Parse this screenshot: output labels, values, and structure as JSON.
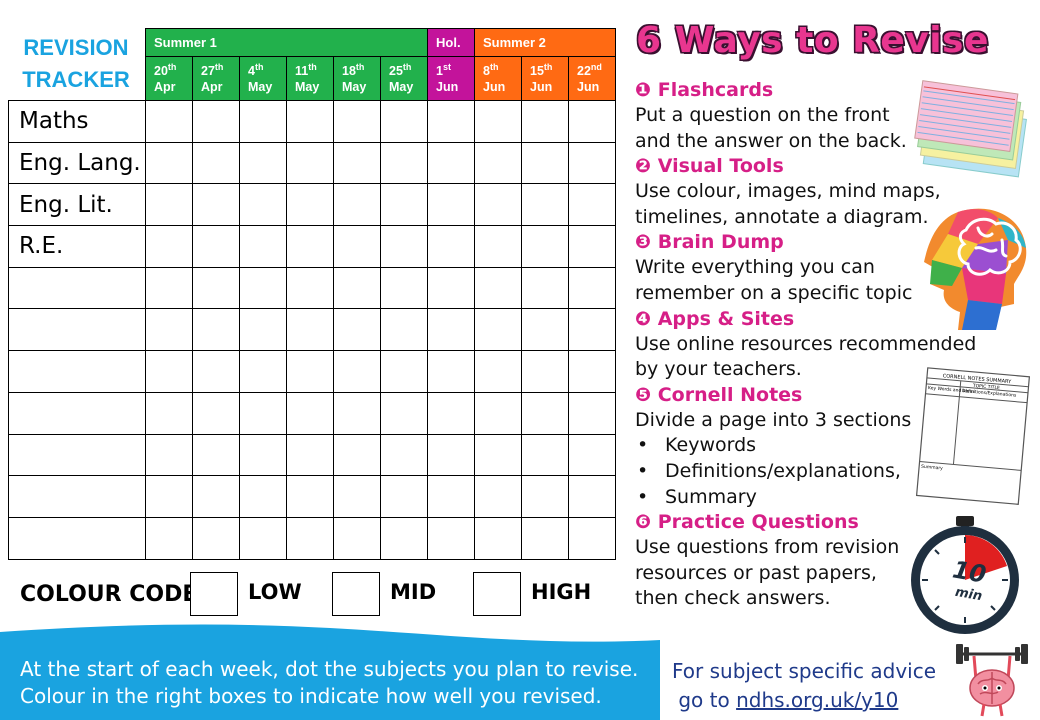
{
  "tracker": {
    "title_line1": "REVISION",
    "title_line2": "TRACKER",
    "terms": [
      {
        "label": "Summer 1",
        "span": 6,
        "color": "#22b14c"
      },
      {
        "label": "Hol.",
        "span": 1,
        "color": "#c3139b"
      },
      {
        "label": "Summer 2",
        "span": 3,
        "color": "#ff6a13"
      }
    ],
    "weeks": [
      {
        "day": "20",
        "suffix": "th",
        "month": "Apr"
      },
      {
        "day": "27",
        "suffix": "th",
        "month": "Apr"
      },
      {
        "day": "4",
        "suffix": "th",
        "month": "May"
      },
      {
        "day": "11",
        "suffix": "th",
        "month": "May"
      },
      {
        "day": "18",
        "suffix": "th",
        "month": "May"
      },
      {
        "day": "25",
        "suffix": "th",
        "month": "May"
      },
      {
        "day": "1",
        "suffix": "st",
        "month": "Jun"
      },
      {
        "day": "8",
        "suffix": "th",
        "month": "Jun"
      },
      {
        "day": "15",
        "suffix": "th",
        "month": "Jun"
      },
      {
        "day": "22",
        "suffix": "nd",
        "month": "Jun"
      }
    ],
    "subjects": [
      "Maths",
      "Eng. Lang.",
      "Eng. Lit.",
      "R.E.",
      "",
      "",
      "",
      "",
      "",
      "",
      ""
    ]
  },
  "colour_code": {
    "title": "COLOUR CODE",
    "levels": [
      "LOW",
      "MID",
      "HIGH"
    ]
  },
  "banner": {
    "line1": "At the start of each week, dot the subjects you plan to revise.",
    "line2": "Colour in the right boxes to indicate how well you revised.",
    "color": "#1aa3e0"
  },
  "advice": {
    "line1": "For subject specific advice",
    "line2_prefix": "go to ",
    "link": "ndhs.org.uk/y10"
  },
  "ways": {
    "title": "6 Ways to Revise",
    "items": [
      {
        "num": "❶",
        "heading": "Flashcards",
        "lines": [
          "Put a question on the front",
          "and the answer on the back."
        ]
      },
      {
        "num": "❷",
        "heading": "Visual Tools",
        "lines": [
          "Use colour, images, mind maps,",
          "timelines, annotate a diagram."
        ]
      },
      {
        "num": "❸",
        "heading": "Brain Dump",
        "lines": [
          "Write everything you can",
          "remember on a specific topic"
        ]
      },
      {
        "num": "❹",
        "heading": "Apps & Sites",
        "lines": [
          "Use online resources recommended",
          "by your teachers."
        ]
      },
      {
        "num": "❺",
        "heading": "Cornell Notes",
        "lines": [
          "Divide a page into 3 sections"
        ],
        "bullets": [
          "Keywords",
          "Definitions/explanations,",
          "Summary"
        ]
      },
      {
        "num": "❻",
        "heading": "Practice Questions",
        "lines": [
          "Use questions from revision",
          "resources or past papers,",
          "then check answers."
        ]
      }
    ]
  },
  "cornell": {
    "title": "CORNELL NOTES SUMMARY",
    "topic": "TOPIC TITLE",
    "col1": "Key Words and Ideas",
    "col2": "Definitions/Explanations",
    "summary": "Summary"
  },
  "timer": {
    "value": "10",
    "unit": "min"
  }
}
